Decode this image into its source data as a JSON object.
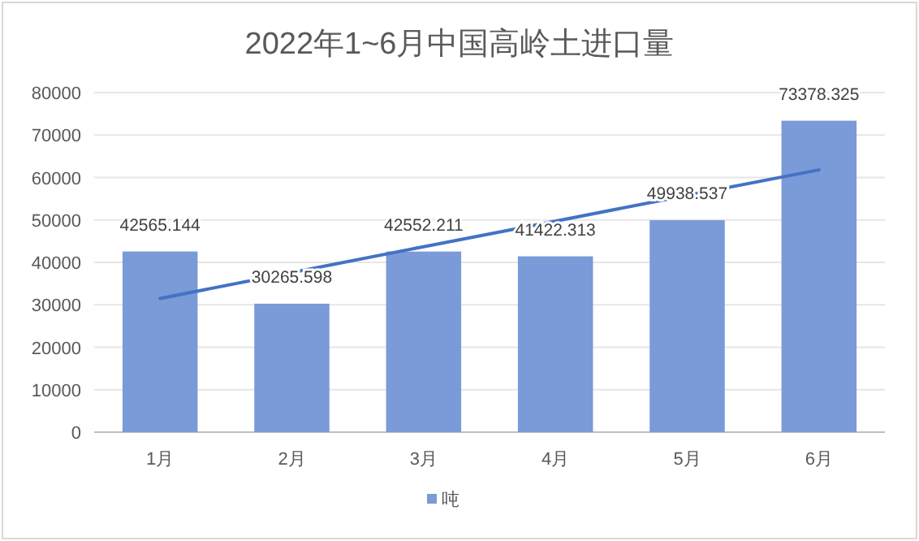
{
  "chart_data": {
    "type": "bar",
    "title": "2022年1~6月中国高岭土进口量",
    "categories": [
      "1月",
      "2月",
      "3月",
      "4月",
      "5月",
      "6月"
    ],
    "series": [
      {
        "name": "吨",
        "color": "#7a9ad8",
        "values": [
          42565.144,
          30265.598,
          42552.211,
          41422.313,
          49938.537,
          73378.325
        ],
        "value_labels": [
          "42565.144",
          "30265.598",
          "42552.211",
          "41422.313",
          "49938.537",
          "73378.325"
        ]
      },
      {
        "type": "line",
        "color": "#4472c4",
        "values": [
          31500,
          37600,
          43700,
          49700,
          55800,
          61800
        ]
      }
    ],
    "ylim": [
      0,
      80000
    ],
    "yticks": [
      0,
      10000,
      20000,
      30000,
      40000,
      50000,
      60000,
      70000,
      80000
    ],
    "grid": "y",
    "legend": "bottom"
  }
}
